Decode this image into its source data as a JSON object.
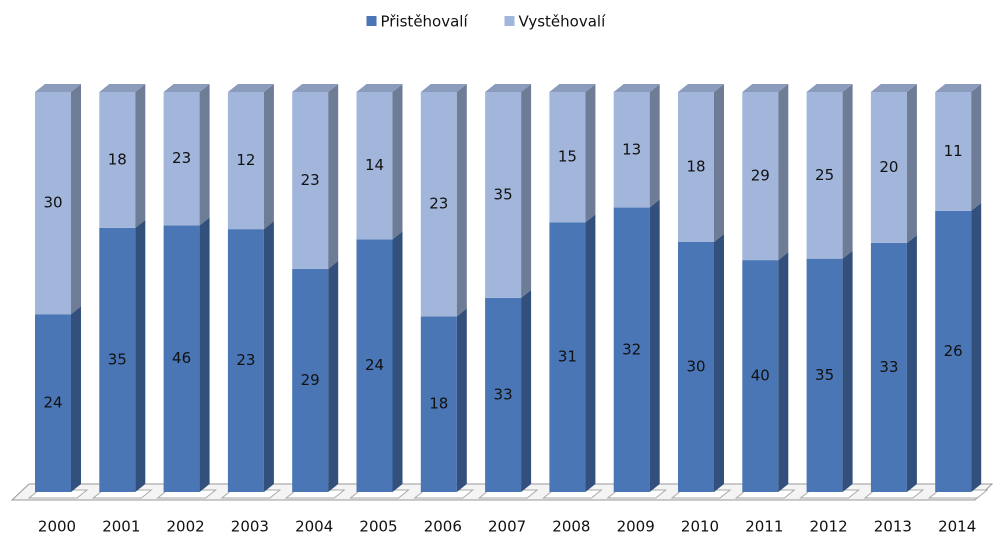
{
  "chart_data": {
    "type": "bar",
    "stacked": "percent",
    "categories": [
      "2000",
      "2001",
      "2002",
      "2003",
      "2004",
      "2005",
      "2006",
      "2007",
      "2008",
      "2009",
      "2010",
      "2011",
      "2012",
      "2013",
      "2014"
    ],
    "series": [
      {
        "name": "Přistěhovalí",
        "color": "#4a76b5",
        "values": [
          24,
          35,
          46,
          23,
          29,
          24,
          18,
          33,
          31,
          32,
          30,
          40,
          35,
          33,
          26
        ]
      },
      {
        "name": "Vystěhovalí",
        "color": "#a2b6dc",
        "values": [
          30,
          18,
          23,
          12,
          23,
          14,
          23,
          35,
          15,
          13,
          18,
          29,
          25,
          20,
          11
        ]
      }
    ],
    "legend": "top"
  }
}
